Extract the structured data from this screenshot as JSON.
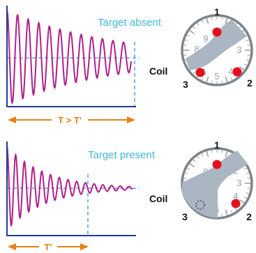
{
  "panels": [
    {
      "label": "Target absent",
      "period_label": "T > T'",
      "coil_label": "Coil",
      "sensors": [
        "1",
        "2",
        "3"
      ],
      "dial_numbers": [
        "2",
        "3",
        "4",
        "5",
        "6",
        "7",
        "8",
        "9"
      ],
      "sensors_active": [
        "1",
        "2",
        "3"
      ]
    },
    {
      "label": "Target present",
      "period_label": "T'",
      "coil_label": "Coil",
      "sensors": [
        "1",
        "2",
        "3"
      ],
      "dial_numbers": [
        "2",
        "3",
        "4",
        "5",
        "6",
        "7",
        "8",
        "9"
      ],
      "sensors_active": [
        "1",
        "2"
      ]
    }
  ],
  "colors": {
    "signal": "#b0208a",
    "axis": "#1f3d99",
    "guide": "#3a8fd6",
    "label": "#3fb6dd",
    "period_arrow": "#e8801a",
    "sensor_dot": "#e3101c",
    "dial_fill": "#aab6c2",
    "dial_rim": "#7d848a"
  }
}
